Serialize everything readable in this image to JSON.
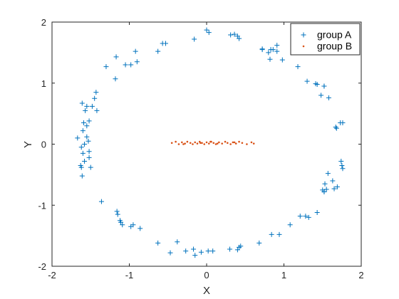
{
  "chart_data": {
    "type": "scatter",
    "title": "",
    "xlabel": "X",
    "ylabel": "Y",
    "xlim": [
      -2,
      2
    ],
    "ylim": [
      -2,
      2
    ],
    "xticks": [
      -2,
      -1,
      0,
      1,
      2
    ],
    "yticks": [
      -2,
      -1,
      0,
      1,
      2
    ],
    "xtick_labels": [
      "-2",
      "-1",
      "0",
      "1",
      "2"
    ],
    "ytick_labels": [
      "-2",
      "-1",
      "0",
      "1",
      "2"
    ],
    "grid": false,
    "legend_position": "top-right",
    "colors": {
      "axis": "#262626",
      "group_a": "#0072BD",
      "group_b": "#D95319"
    },
    "series": [
      {
        "name": "group A",
        "marker": "+",
        "x": [
          -1.67,
          -1.6,
          -1.55,
          -1.52,
          -1.48,
          -1.45,
          -1.43,
          -1.42,
          -1.55,
          -1.57,
          -1.61,
          -1.59,
          -1.55,
          -1.53,
          -1.58,
          -1.62,
          -1.6,
          -1.52,
          -1.63,
          -1.58,
          -1.62,
          -1.61,
          -1.52,
          -1.5,
          -1.36,
          -1.16,
          -1.15,
          -1.12,
          -1.09,
          -1.11,
          -0.98,
          -0.95,
          -0.86,
          -0.63,
          -0.47,
          -0.38,
          -0.27,
          -0.17,
          -0.15,
          -0.07,
          0.02,
          0.08,
          0.3,
          0.42,
          0.4,
          0.44,
          0.68,
          0.84,
          0.94,
          1.08,
          1.21,
          1.28,
          1.32,
          1.43,
          1.52,
          1.55,
          1.65,
          1.69,
          1.76,
          1.75,
          1.74,
          1.63,
          1.57,
          1.53,
          1.5,
          1.52,
          1.73,
          1.67,
          1.68,
          1.76,
          1.58,
          1.52,
          1.43,
          1.48,
          1.52,
          1.41,
          1.3,
          1.18,
          0.98,
          0.91,
          0.83,
          0.8,
          0.72,
          0.4,
          0.42,
          0.31,
          0.36,
          -0.9,
          -0.92,
          -0.98,
          -1.05,
          -1.18,
          -1.17,
          -1.3,
          -0.63,
          -0.57,
          -0.53,
          -0.16,
          0.0,
          0.03,
          0.72,
          0.82,
          0.86,
          0.91
        ],
        "y": [
          0.1,
          0.22,
          0.3,
          0.38,
          0.62,
          0.75,
          0.85,
          0.55,
          0.62,
          0.55,
          0.67,
          0.35,
          0.12,
          0.05,
          0.0,
          -0.05,
          -0.15,
          -0.12,
          -0.35,
          -0.28,
          -0.38,
          -0.52,
          -0.22,
          -0.38,
          -0.94,
          -1.1,
          -1.15,
          -1.25,
          -1.32,
          -1.28,
          -1.35,
          -1.32,
          -1.38,
          -1.62,
          -1.78,
          -1.6,
          -1.75,
          -1.72,
          -1.82,
          -1.77,
          -1.75,
          -1.75,
          -1.72,
          -1.69,
          -1.73,
          -1.67,
          -1.62,
          -1.48,
          -1.48,
          -1.32,
          -1.18,
          -1.18,
          -1.2,
          -1.12,
          -0.78,
          -0.74,
          -0.73,
          -0.7,
          -0.4,
          -0.35,
          -0.28,
          -0.6,
          -0.48,
          -0.65,
          -0.75,
          -0.78,
          0.35,
          0.28,
          0.26,
          0.35,
          0.76,
          0.95,
          0.98,
          0.8,
          0.95,
          0.99,
          1.03,
          1.27,
          1.38,
          1.52,
          1.55,
          1.5,
          1.55,
          1.77,
          1.73,
          1.79,
          1.8,
          1.35,
          1.52,
          1.3,
          1.3,
          1.07,
          1.43,
          1.27,
          1.52,
          1.65,
          1.65,
          1.72,
          1.87,
          1.83,
          1.56,
          1.39,
          1.55,
          1.62
        ]
      },
      {
        "name": "group B",
        "marker": ".",
        "x": [
          -0.45,
          -0.4,
          -0.36,
          -0.32,
          -0.28,
          -0.25,
          -0.21,
          -0.18,
          -0.15,
          -0.12,
          -0.09,
          -0.06,
          -0.03,
          0.0,
          0.03,
          0.06,
          0.09,
          0.12,
          0.16,
          0.2,
          0.24,
          0.27,
          0.31,
          0.34,
          0.38,
          0.42,
          0.46,
          0.52,
          0.58,
          0.61,
          -0.3,
          -0.08,
          0.05,
          0.14,
          0.36
        ],
        "y": [
          0.02,
          0.04,
          0.0,
          0.03,
          0.01,
          0.04,
          0.02,
          0.0,
          0.03,
          0.01,
          0.04,
          0.02,
          0.0,
          0.03,
          0.01,
          0.04,
          0.02,
          0.0,
          0.03,
          0.01,
          0.04,
          0.02,
          0.0,
          0.03,
          0.01,
          0.04,
          0.02,
          0.0,
          0.03,
          0.01,
          0.0,
          0.02,
          0.04,
          0.01,
          0.03
        ]
      }
    ]
  }
}
